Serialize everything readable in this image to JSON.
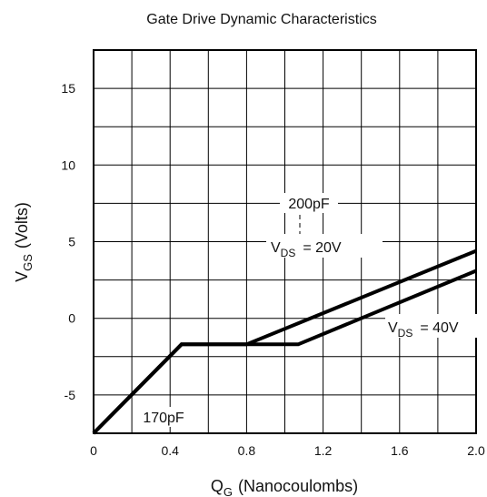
{
  "chart_data": {
    "type": "line",
    "title": "Gate Drive Dynamic Characteristics",
    "xlabel": {
      "main": "Q",
      "sub": "G",
      "rest": "(Nanocoulombs)"
    },
    "ylabel": {
      "main": "V",
      "sub": "GS",
      "rest": "(Volts)"
    },
    "xlim": [
      0,
      2.0
    ],
    "ylim": [
      -7.5,
      17.5
    ],
    "xticks": [
      0,
      0.4,
      0.8,
      1.2,
      1.6,
      2.0
    ],
    "xtick_labels": [
      "0",
      "0.4",
      "0.8",
      "1.2",
      "1.6",
      "2.0"
    ],
    "yticks": [
      -5,
      0,
      5,
      10,
      15
    ],
    "ytick_labels": [
      "-5",
      "0",
      "5",
      "10",
      "15"
    ],
    "grid": true,
    "series": [
      {
        "name": "VDS = 20V",
        "x": [
          0,
          0.46,
          0.8,
          2.0
        ],
        "y": [
          -7.5,
          -1.7,
          -1.7,
          4.4
        ]
      },
      {
        "name": "VDS = 40V",
        "x": [
          0,
          0.46,
          1.07,
          2.0
        ],
        "y": [
          -7.5,
          -1.7,
          -1.7,
          3.1
        ]
      }
    ],
    "annotations": {
      "cap_top": "200pF",
      "cap_bottom": "170pF",
      "vds20": {
        "main": "V",
        "sub": "DS",
        "rest": "= 20V"
      },
      "vds40": {
        "main": "V",
        "sub": "DS",
        "rest": "= 40V"
      }
    }
  }
}
